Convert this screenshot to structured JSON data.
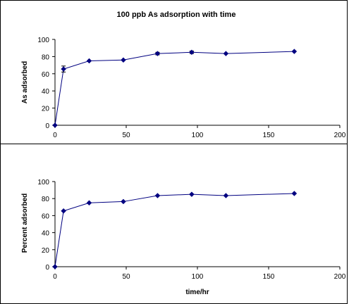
{
  "chart_data": [
    {
      "type": "line",
      "title": "100 ppb As adsorption with time",
      "xlabel": "",
      "ylabel": "As adsorbed",
      "xlim": [
        0,
        200
      ],
      "ylim": [
        0,
        100
      ],
      "x_ticks": [
        0,
        50,
        100,
        150,
        200
      ],
      "y_ticks": [
        0,
        20,
        40,
        60,
        80,
        100
      ],
      "grid": false,
      "series": [
        {
          "color": "#000080",
          "marker": "diamond",
          "x": [
            0,
            6,
            24,
            48,
            72,
            96,
            120,
            168
          ],
          "y": [
            0,
            65.5,
            75,
            76,
            83.5,
            85,
            83.5,
            86
          ],
          "error": [
            0,
            3.5,
            0,
            0,
            1.5,
            1.5,
            0,
            0
          ]
        }
      ]
    },
    {
      "type": "line",
      "title": "",
      "xlabel": "time/hr",
      "ylabel": "Percent adsorbed",
      "xlim": [
        0,
        200
      ],
      "ylim": [
        0,
        100
      ],
      "x_ticks": [
        0,
        50,
        100,
        150,
        200
      ],
      "y_ticks": [
        0,
        20,
        40,
        60,
        80,
        100
      ],
      "grid": false,
      "series": [
        {
          "color": "#000080",
          "marker": "diamond",
          "x": [
            0,
            6,
            24,
            48,
            72,
            96,
            120,
            168
          ],
          "y": [
            0,
            65.5,
            75,
            76.5,
            83.5,
            85,
            83.5,
            86
          ]
        }
      ]
    }
  ]
}
